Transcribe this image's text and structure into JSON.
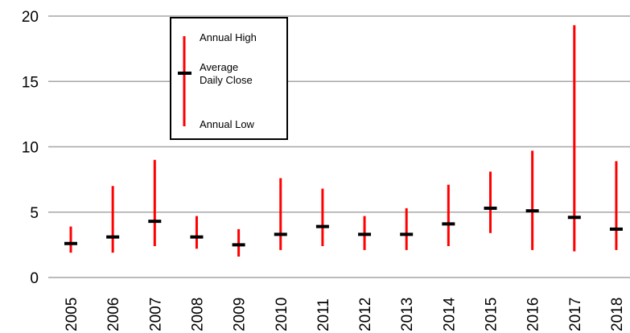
{
  "chart_data": {
    "type": "range",
    "title": "",
    "xlabel": "",
    "ylabel": "",
    "ylim": [
      0,
      20
    ],
    "yticks": [
      0,
      5,
      10,
      15,
      20
    ],
    "grid": "horizontal",
    "legend_position": "top-left",
    "categories": [
      "2005",
      "2006",
      "2007",
      "2008",
      "2009",
      "2010",
      "2011",
      "2012",
      "2013",
      "2014",
      "2015",
      "2016",
      "2017",
      "2018"
    ],
    "series": [
      {
        "name": "Annual High",
        "values": [
          3.9,
          7.0,
          9.0,
          4.7,
          3.7,
          7.6,
          6.8,
          4.7,
          5.3,
          7.1,
          8.1,
          9.7,
          19.3,
          8.9
        ]
      },
      {
        "name": "Average Daily Close",
        "values": [
          2.6,
          3.1,
          4.3,
          3.1,
          2.5,
          3.3,
          3.9,
          3.3,
          3.3,
          4.1,
          5.3,
          5.1,
          4.6,
          3.7
        ]
      },
      {
        "name": "Annual Low",
        "values": [
          1.9,
          1.9,
          2.4,
          2.2,
          1.6,
          2.1,
          2.4,
          2.1,
          2.1,
          2.4,
          3.4,
          2.1,
          2.0,
          2.1
        ]
      }
    ],
    "legend": {
      "high_label": "Annual High",
      "close_label_line1": "Average",
      "close_label_line2": "Daily Close",
      "low_label": "Annual Low"
    },
    "colors": {
      "range_bar": "#ff0000",
      "close_marker": "#000000",
      "grid": "#a6a6a6"
    }
  }
}
